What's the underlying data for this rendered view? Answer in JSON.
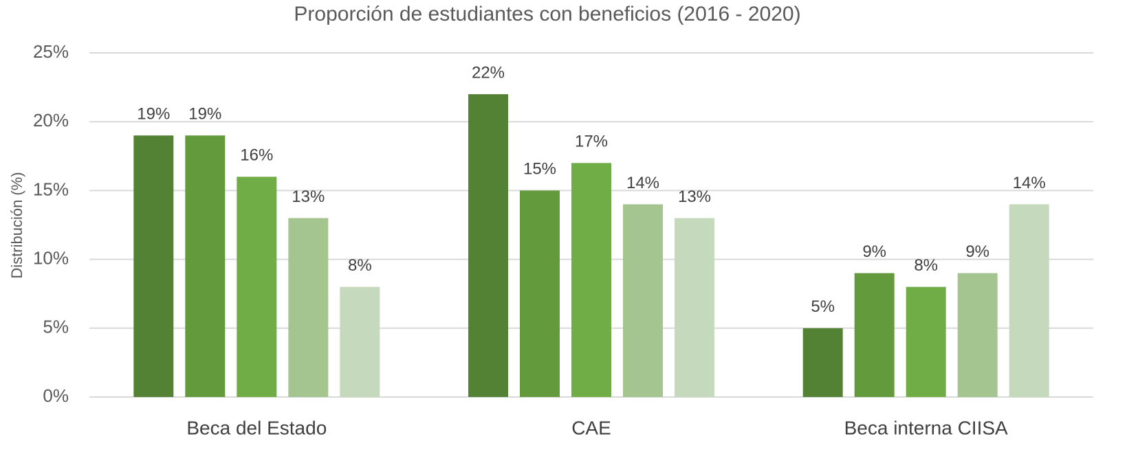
{
  "chart_data": {
    "type": "bar",
    "title": "Proporción de estudiantes con beneficios (2016 - 2020)",
    "y_label": "Distribución (%)",
    "categories": [
      "Beca del Estado",
      "CAE",
      "Beca interna CIISA"
    ],
    "series": [
      {
        "color": "#548235",
        "values": [
          19,
          22,
          5
        ],
        "value_labels": [
          "19%",
          "22%",
          "5%"
        ]
      },
      {
        "color": "#639a3c",
        "values": [
          19,
          15,
          9
        ],
        "value_labels": [
          "19%",
          "15%",
          "9%"
        ]
      },
      {
        "color": "#70ad47",
        "values": [
          16,
          17,
          8
        ],
        "value_labels": [
          "16%",
          "17%",
          "8%"
        ]
      },
      {
        "color": "#a4c490",
        "values": [
          13,
          14,
          9
        ],
        "value_labels": [
          "13%",
          "14%",
          "9%"
        ]
      },
      {
        "color": "#c5d9bc",
        "values": [
          8,
          13,
          14
        ],
        "value_labels": [
          "8%",
          "13%",
          "14%"
        ]
      }
    ],
    "ylim": [
      0,
      25
    ],
    "yticks": [
      {
        "value": 0,
        "label": "0%"
      },
      {
        "value": 5,
        "label": "5%"
      },
      {
        "value": 10,
        "label": "10%"
      },
      {
        "value": 15,
        "label": "15%"
      },
      {
        "value": 20,
        "label": "20%"
      },
      {
        "value": 25,
        "label": "25%"
      }
    ],
    "grid": true
  }
}
